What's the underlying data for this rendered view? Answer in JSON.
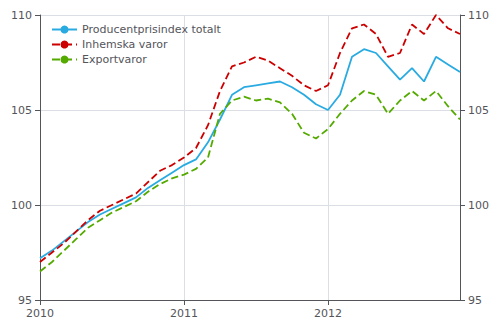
{
  "chart_data": {
    "type": "line",
    "categories": [
      "2010",
      null,
      null,
      null,
      null,
      null,
      null,
      null,
      null,
      null,
      null,
      null,
      "2011",
      null,
      null,
      null,
      null,
      null,
      null,
      null,
      null,
      null,
      null,
      null,
      "2012",
      null,
      null,
      null,
      null,
      null,
      null,
      null,
      null,
      null,
      null,
      null
    ],
    "series": [
      {
        "name": "Producentprisindex totalt",
        "color": "#29ABE2",
        "line_style": "solid",
        "values": [
          97.2,
          97.6,
          98.1,
          98.6,
          99.1,
          99.5,
          99.8,
          100.1,
          100.4,
          100.9,
          101.3,
          101.7,
          102.1,
          102.4,
          103.3,
          104.5,
          105.8,
          106.2,
          106.3,
          106.4,
          106.5,
          106.2,
          105.8,
          105.3,
          105.0,
          105.8,
          107.8,
          108.2,
          108.0,
          107.3,
          106.6,
          107.2,
          106.5,
          107.8,
          107.4,
          107.0
        ]
      },
      {
        "name": "Inhemska varor",
        "color": "#CC0000",
        "line_style": "dashed",
        "values": [
          97.0,
          97.5,
          98.0,
          98.6,
          99.2,
          99.7,
          100.0,
          100.3,
          100.6,
          101.2,
          101.8,
          102.1,
          102.5,
          103.0,
          104.2,
          106.0,
          107.3,
          107.5,
          107.8,
          107.6,
          107.2,
          106.8,
          106.3,
          106.0,
          106.3,
          108.0,
          109.3,
          109.5,
          109.0,
          107.8,
          108.0,
          109.5,
          109.0,
          110.0,
          109.3,
          109.0
        ]
      },
      {
        "name": "Exportvaror",
        "color": "#55AA00",
        "line_style": "dashed",
        "values": [
          96.5,
          97.0,
          97.6,
          98.2,
          98.8,
          99.2,
          99.6,
          99.9,
          100.2,
          100.7,
          101.1,
          101.4,
          101.6,
          101.9,
          102.5,
          104.8,
          105.5,
          105.7,
          105.5,
          105.6,
          105.4,
          104.8,
          103.8,
          103.5,
          104.0,
          104.8,
          105.5,
          106.0,
          105.8,
          104.8,
          105.5,
          106.0,
          105.5,
          106.0,
          105.2,
          104.5
        ]
      }
    ],
    "ylim": [
      95,
      110
    ],
    "yticks": [
      95,
      100,
      105,
      110
    ],
    "y2lim": [
      95,
      110
    ],
    "y2ticks": [
      95,
      100,
      105,
      110
    ],
    "grid": true,
    "legend": "upper left"
  }
}
